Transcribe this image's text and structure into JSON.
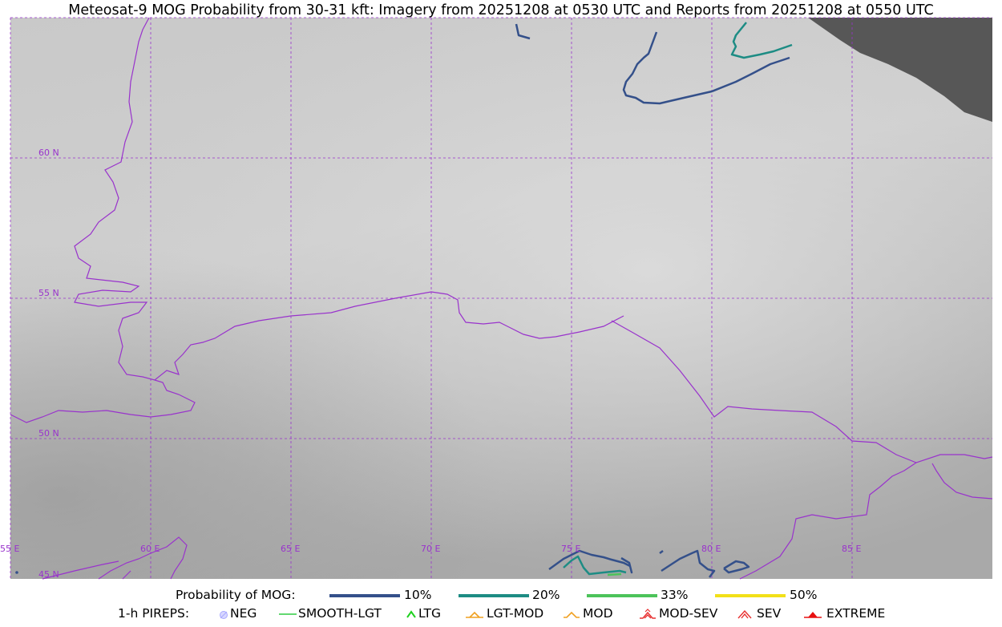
{
  "title": "Meteosat-9 MOG Probability from 30-31 kft: Imagery from 20251208 at 0530 UTC and Reports from 20251208 at 0550 UTC",
  "map": {
    "lat_labels": [
      "60 N",
      "55 N",
      "50 N",
      "45 N"
    ],
    "lon_labels": [
      "55 E",
      "60 E",
      "65 E",
      "70 E",
      "75 E",
      "80 E",
      "85 E"
    ],
    "colors": {
      "grid": "#9933cc",
      "border": "#9933cc",
      "no_data": "#575757"
    }
  },
  "legend": {
    "probability_label": "Probability of MOG:",
    "probability_levels": [
      {
        "label": "10%",
        "color": "#34508a"
      },
      {
        "label": "20%",
        "color": "#1d8c84"
      },
      {
        "label": "33%",
        "color": "#4cc35a"
      },
      {
        "label": "50%",
        "color": "#f2e019"
      }
    ],
    "pireps_label": "1-h PIREPS:",
    "pirep_types": [
      {
        "label": "NEG",
        "icon": "neg-circle-icon",
        "color": "#a8a8ff"
      },
      {
        "label": "SMOOTH-LGT",
        "icon": "smooth-line-icon",
        "color": "#2ecc40"
      },
      {
        "label": "LTG",
        "icon": "ltg-caret-icon",
        "color": "#1fd11f"
      },
      {
        "label": "LGT-MOD",
        "icon": "lgt-mod-caret-icon",
        "color": "#f0a020"
      },
      {
        "label": "MOD",
        "icon": "mod-caret-icon",
        "color": "#f0a020"
      },
      {
        "label": "MOD-SEV",
        "icon": "mod-sev-caret-icon",
        "color": "#e83030"
      },
      {
        "label": "SEV",
        "icon": "sev-caret-icon",
        "color": "#e83030"
      },
      {
        "label": "EXTREME",
        "icon": "extreme-caret-icon",
        "color": "#e81010"
      }
    ]
  }
}
